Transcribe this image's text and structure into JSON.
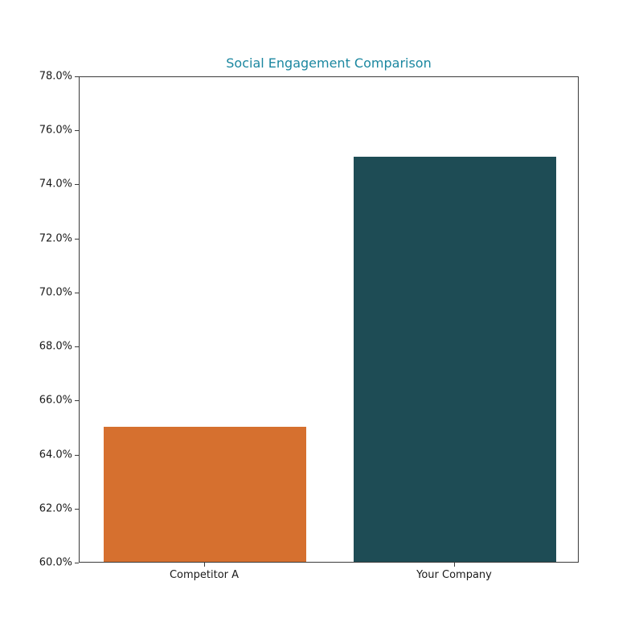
{
  "colors": {
    "title": "#1b87a0",
    "axis": "#3a3a3a",
    "tick_label": "#1a1a1a",
    "background": "#ffffff"
  },
  "chart_data": {
    "type": "bar",
    "title": "Social Engagement Comparison",
    "categories": [
      "Competitor A",
      "Your Company"
    ],
    "values": [
      65.0,
      75.0
    ],
    "bar_colors": [
      "#d6702f",
      "#1e4c55"
    ],
    "xlabel": "",
    "ylabel": "",
    "ylim": [
      60,
      78
    ],
    "ytick_step": 2,
    "ytick_values": [
      60,
      62,
      64,
      66,
      68,
      70,
      72,
      74,
      76,
      78
    ],
    "ytick_labels": [
      "60.0%",
      "62.0%",
      "64.0%",
      "66.0%",
      "68.0%",
      "70.0%",
      "72.0%",
      "74.0%",
      "76.0%",
      "78.0%"
    ],
    "grid": false,
    "legend": null
  }
}
